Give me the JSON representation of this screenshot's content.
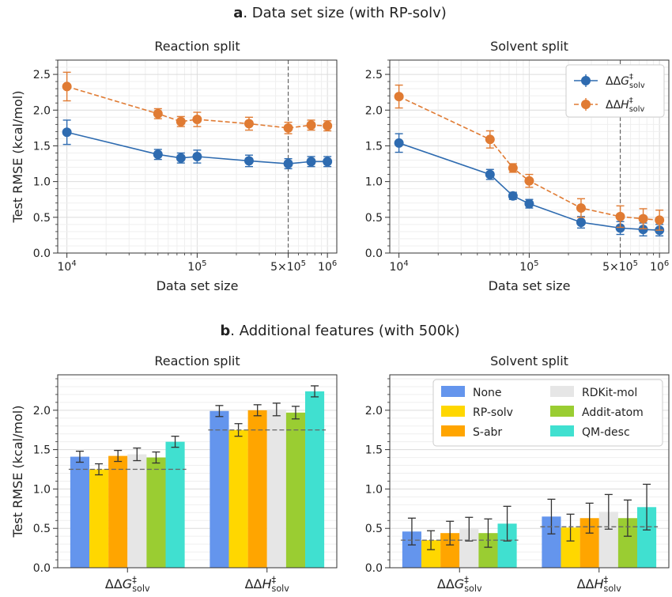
{
  "panel_a": {
    "letter": "a",
    "title_rest": ". Data set size (with RP-solv)"
  },
  "panel_b": {
    "letter": "b",
    "title_rest": ". Additional features (with 500k)"
  },
  "symbols": {
    "g": "ΔΔG‡solv",
    "h": "ΔΔH‡solv"
  },
  "colors": {
    "g": "#2e6bb0",
    "h": "#e07b33",
    "features": [
      "#6495ed",
      "#ffd700",
      "#ffa500",
      "#e6e6e6",
      "#9acd32",
      "#40e0d0"
    ]
  },
  "chart_data": [
    {
      "type": "line",
      "title": "Reaction split",
      "xlabel": "Data set size",
      "ylabel": "Test RMSE (kcal/mol)",
      "xscale": "log",
      "xlim": [
        8500,
        1180000
      ],
      "ylim": [
        0,
        2.7
      ],
      "x_ticks": [
        "10^4",
        "10^5",
        "5×10^5",
        "10^6"
      ],
      "y_ticks": [
        "0.0",
        "0.5",
        "1.0",
        "1.5",
        "2.0",
        "2.5"
      ],
      "reference_line_x": 500000,
      "grid": true,
      "x": [
        10000,
        50000,
        75000,
        100000,
        250000,
        500000,
        750000,
        1000000
      ],
      "series": [
        {
          "key": "g",
          "style": "solid",
          "values": [
            1.69,
            1.38,
            1.33,
            1.35,
            1.29,
            1.25,
            1.28,
            1.28
          ],
          "errors": [
            0.17,
            0.07,
            0.07,
            0.09,
            0.08,
            0.07,
            0.07,
            0.07
          ]
        },
        {
          "key": "h",
          "style": "dashed",
          "values": [
            2.33,
            1.95,
            1.84,
            1.87,
            1.81,
            1.75,
            1.79,
            1.78
          ],
          "errors": [
            0.2,
            0.07,
            0.07,
            0.1,
            0.09,
            0.08,
            0.07,
            0.07
          ]
        }
      ]
    },
    {
      "type": "line",
      "title": "Solvent split",
      "xlabel": "Data set size",
      "ylabel": "",
      "xscale": "log",
      "xlim": [
        8500,
        1180000
      ],
      "ylim": [
        0,
        2.7
      ],
      "x_ticks": [
        "10^4",
        "10^5",
        "5×10^5",
        "10^6"
      ],
      "y_ticks": [
        "0.0",
        "0.5",
        "1.0",
        "1.5",
        "2.0",
        "2.5"
      ],
      "reference_line_x": 500000,
      "grid": true,
      "legend_position": "top-right",
      "x": [
        10000,
        50000,
        75000,
        100000,
        250000,
        500000,
        750000,
        1000000
      ],
      "series": [
        {
          "key": "g",
          "style": "solid",
          "values": [
            1.54,
            1.1,
            0.8,
            0.69,
            0.43,
            0.35,
            0.33,
            0.32
          ],
          "errors": [
            0.13,
            0.07,
            0.05,
            0.06,
            0.08,
            0.09,
            0.09,
            0.08
          ]
        },
        {
          "key": "h",
          "style": "dashed",
          "values": [
            2.19,
            1.59,
            1.19,
            1.01,
            0.63,
            0.51,
            0.48,
            0.46
          ],
          "errors": [
            0.16,
            0.12,
            0.06,
            0.09,
            0.13,
            0.15,
            0.14,
            0.14
          ]
        }
      ]
    },
    {
      "type": "bar",
      "title": "Reaction split",
      "ylabel": "Test RMSE (kcal/mol)",
      "ylim": [
        0,
        2.45
      ],
      "y_ticks": [
        "0.0",
        "0.5",
        "1.0",
        "1.5",
        "2.0"
      ],
      "grid": true,
      "categories": [
        "g",
        "h"
      ],
      "reference_lines": [
        1.25,
        1.75
      ],
      "series": [
        {
          "name": "None",
          "values": [
            1.41,
            1.99
          ],
          "errors": [
            0.07,
            0.07
          ]
        },
        {
          "name": "RP-solv",
          "values": [
            1.25,
            1.75
          ],
          "errors": [
            0.07,
            0.08
          ]
        },
        {
          "name": "S-abr",
          "values": [
            1.42,
            2.0
          ],
          "errors": [
            0.07,
            0.07
          ]
        },
        {
          "name": "RDKit-mol",
          "values": [
            1.44,
            2.01
          ],
          "errors": [
            0.08,
            0.08
          ]
        },
        {
          "name": "Addit-atom",
          "values": [
            1.4,
            1.97
          ],
          "errors": [
            0.07,
            0.08
          ]
        },
        {
          "name": "QM-desc",
          "values": [
            1.6,
            2.24
          ],
          "errors": [
            0.07,
            0.07
          ]
        }
      ]
    },
    {
      "type": "bar",
      "title": "Solvent split",
      "ylabel": "",
      "ylim": [
        0,
        2.45
      ],
      "y_ticks": [
        "0.0",
        "0.5",
        "1.0",
        "1.5",
        "2.0"
      ],
      "grid": true,
      "legend_position": "top-right",
      "categories": [
        "g",
        "h"
      ],
      "reference_lines": [
        0.35,
        0.52
      ],
      "series": [
        {
          "name": "None",
          "values": [
            0.46,
            0.65
          ],
          "errors": [
            0.17,
            0.22
          ]
        },
        {
          "name": "RP-solv",
          "values": [
            0.35,
            0.51
          ],
          "errors": [
            0.12,
            0.17
          ]
        },
        {
          "name": "S-abr",
          "values": [
            0.44,
            0.63
          ],
          "errors": [
            0.15,
            0.19
          ]
        },
        {
          "name": "RDKit-mol",
          "values": [
            0.49,
            0.71
          ],
          "errors": [
            0.15,
            0.22
          ]
        },
        {
          "name": "Addit-atom",
          "values": [
            0.44,
            0.63
          ],
          "errors": [
            0.18,
            0.23
          ]
        },
        {
          "name": "QM-desc",
          "values": [
            0.56,
            0.77
          ],
          "errors": [
            0.22,
            0.29
          ]
        }
      ]
    }
  ]
}
